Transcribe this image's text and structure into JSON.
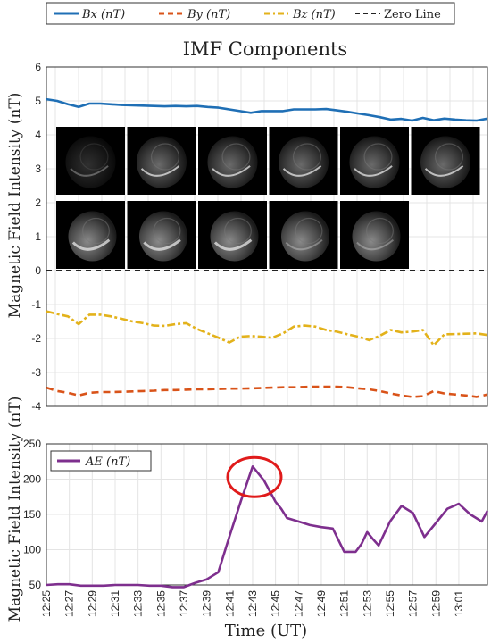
{
  "chart_data": [
    {
      "type": "line",
      "title": "IMF Components",
      "ylabel": "Magnetic Field Intensity (nT)",
      "ylim": [
        -4,
        6
      ],
      "yticks": [
        "6",
        "5",
        "4",
        "3",
        "2",
        "1",
        "0",
        "-1",
        "-2",
        "-3",
        "-4"
      ],
      "grid": true,
      "legend": {
        "position": "top",
        "entries": [
          "Bx (nT)",
          "By (nT)",
          "Bz (nT)",
          "Zero Line"
        ]
      },
      "series": [
        {
          "name": "Bx (nT)",
          "color": "#1f6fb5",
          "style": "solid",
          "values": [
            5.05,
            5.0,
            4.9,
            4.82,
            4.92,
            4.92,
            4.9,
            4.88,
            4.87,
            4.86,
            4.85,
            4.84,
            4.85,
            4.84,
            4.85,
            4.82,
            4.8,
            4.75,
            4.7,
            4.65,
            4.7,
            4.7,
            4.7,
            4.75,
            4.75,
            4.75,
            4.76,
            4.72,
            4.68,
            4.63,
            4.58,
            4.52,
            4.45,
            4.47,
            4.42,
            4.5,
            4.43,
            4.48,
            4.45,
            4.43,
            4.42,
            4.48
          ]
        },
        {
          "name": "By (nT)",
          "color": "#d95319",
          "style": "dashed",
          "values": [
            -3.45,
            -3.55,
            -3.6,
            -3.68,
            -3.6,
            -3.58,
            -3.58,
            -3.57,
            -3.56,
            -3.55,
            -3.54,
            -3.52,
            -3.52,
            -3.51,
            -3.5,
            -3.5,
            -3.49,
            -3.48,
            -3.48,
            -3.47,
            -3.46,
            -3.45,
            -3.44,
            -3.44,
            -3.43,
            -3.42,
            -3.42,
            -3.42,
            -3.44,
            -3.47,
            -3.5,
            -3.55,
            -3.62,
            -3.68,
            -3.72,
            -3.7,
            -3.55,
            -3.62,
            -3.65,
            -3.68,
            -3.72,
            -3.65
          ]
        },
        {
          "name": "Bz (nT)",
          "color": "#e3b21b",
          "style": "dashdot",
          "values": [
            -1.2,
            -1.28,
            -1.35,
            -1.58,
            -1.3,
            -1.3,
            -1.35,
            -1.42,
            -1.5,
            -1.55,
            -1.62,
            -1.63,
            -1.58,
            -1.55,
            -1.72,
            -1.85,
            -1.98,
            -2.12,
            -1.95,
            -1.93,
            -1.95,
            -1.98,
            -1.85,
            -1.65,
            -1.62,
            -1.65,
            -1.75,
            -1.8,
            -1.88,
            -1.95,
            -2.05,
            -1.92,
            -1.75,
            -1.82,
            -1.8,
            -1.75,
            -2.2,
            -1.88,
            -1.87,
            -1.86,
            -1.85,
            -1.9
          ]
        },
        {
          "name": "Zero Line",
          "color": "#222222",
          "style": "dashed",
          "values": [
            0,
            0
          ]
        }
      ]
    },
    {
      "type": "line",
      "ylabel": "Magnetic Field Intensity (nT)",
      "xlabel": "Time (UT)",
      "ylim": [
        50,
        250
      ],
      "yticks": [
        "250",
        "200",
        "150",
        "100",
        "50"
      ],
      "xticks": [
        "12:25",
        "12:27",
        "12:29",
        "12:31",
        "12:33",
        "12:35",
        "12:37",
        "12:39",
        "12:41",
        "12:43",
        "12:45",
        "12:47",
        "12:49",
        "12:51",
        "12:53",
        "12:55",
        "12:57",
        "12:59",
        "13:01"
      ],
      "grid": true,
      "legend": {
        "position": "top-left",
        "entries": [
          "AE (nT)"
        ]
      },
      "series": [
        {
          "name": "AE (nT)",
          "color": "#7e2f8e",
          "style": "solid",
          "x": [
            0,
            1,
            2,
            3,
            4,
            5,
            6,
            7,
            8,
            9,
            10,
            11,
            12,
            13,
            14,
            15,
            16,
            17,
            18,
            19,
            20,
            20.5,
            21,
            22,
            23,
            24,
            25,
            26,
            27,
            27.5,
            28,
            28.5,
            29,
            30,
            31,
            32,
            33,
            34,
            35,
            36,
            37,
            38,
            38.5
          ],
          "values": [
            50,
            51,
            51,
            49,
            49,
            49,
            50,
            50,
            50,
            49,
            49,
            47,
            47,
            53,
            58,
            68,
            120,
            170,
            218,
            198,
            168,
            158,
            145,
            140,
            135,
            132,
            130,
            97,
            97,
            108,
            125,
            115,
            106,
            140,
            162,
            152,
            118,
            138,
            158,
            165,
            150,
            140,
            155
          ]
        }
      ],
      "annotation": {
        "type": "circle",
        "label": "",
        "target_x": 18,
        "target_y": 218
      }
    }
  ],
  "thumbnails": {
    "count": 11,
    "rows": [
      6,
      5
    ],
    "description_icon": "uv-aurora-image"
  }
}
